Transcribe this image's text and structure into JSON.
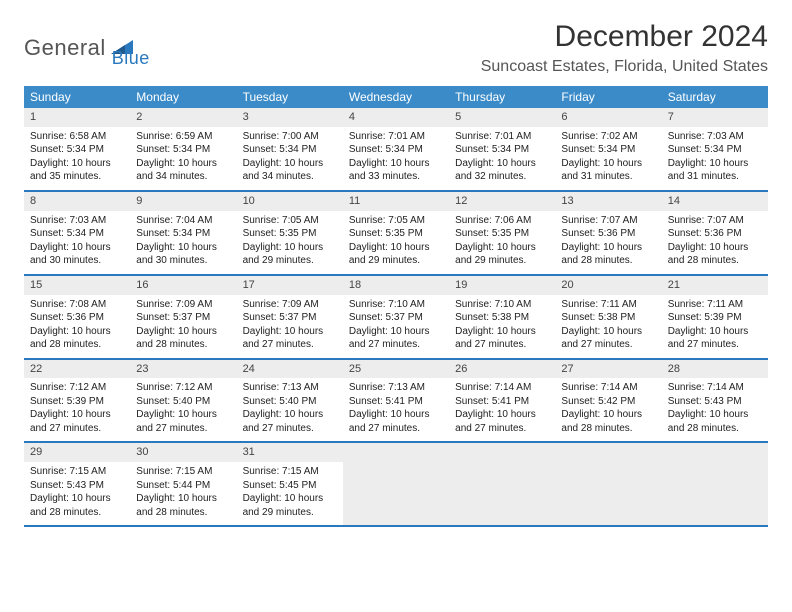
{
  "logo": {
    "part1": "General",
    "part2": "Blue"
  },
  "title": "December 2024",
  "location": "Suncoast Estates, Florida, United States",
  "colors": {
    "header_bg": "#3b8bc9",
    "rule": "#2a78bd",
    "date_bg": "#ededed",
    "logo_accent": "#2a78bd"
  },
  "day_names": [
    "Sunday",
    "Monday",
    "Tuesday",
    "Wednesday",
    "Thursday",
    "Friday",
    "Saturday"
  ],
  "weeks": [
    [
      {
        "n": "1",
        "sr": "Sunrise: 6:58 AM",
        "ss": "Sunset: 5:34 PM",
        "dl": "Daylight: 10 hours and 35 minutes."
      },
      {
        "n": "2",
        "sr": "Sunrise: 6:59 AM",
        "ss": "Sunset: 5:34 PM",
        "dl": "Daylight: 10 hours and 34 minutes."
      },
      {
        "n": "3",
        "sr": "Sunrise: 7:00 AM",
        "ss": "Sunset: 5:34 PM",
        "dl": "Daylight: 10 hours and 34 minutes."
      },
      {
        "n": "4",
        "sr": "Sunrise: 7:01 AM",
        "ss": "Sunset: 5:34 PM",
        "dl": "Daylight: 10 hours and 33 minutes."
      },
      {
        "n": "5",
        "sr": "Sunrise: 7:01 AM",
        "ss": "Sunset: 5:34 PM",
        "dl": "Daylight: 10 hours and 32 minutes."
      },
      {
        "n": "6",
        "sr": "Sunrise: 7:02 AM",
        "ss": "Sunset: 5:34 PM",
        "dl": "Daylight: 10 hours and 31 minutes."
      },
      {
        "n": "7",
        "sr": "Sunrise: 7:03 AM",
        "ss": "Sunset: 5:34 PM",
        "dl": "Daylight: 10 hours and 31 minutes."
      }
    ],
    [
      {
        "n": "8",
        "sr": "Sunrise: 7:03 AM",
        "ss": "Sunset: 5:34 PM",
        "dl": "Daylight: 10 hours and 30 minutes."
      },
      {
        "n": "9",
        "sr": "Sunrise: 7:04 AM",
        "ss": "Sunset: 5:34 PM",
        "dl": "Daylight: 10 hours and 30 minutes."
      },
      {
        "n": "10",
        "sr": "Sunrise: 7:05 AM",
        "ss": "Sunset: 5:35 PM",
        "dl": "Daylight: 10 hours and 29 minutes."
      },
      {
        "n": "11",
        "sr": "Sunrise: 7:05 AM",
        "ss": "Sunset: 5:35 PM",
        "dl": "Daylight: 10 hours and 29 minutes."
      },
      {
        "n": "12",
        "sr": "Sunrise: 7:06 AM",
        "ss": "Sunset: 5:35 PM",
        "dl": "Daylight: 10 hours and 29 minutes."
      },
      {
        "n": "13",
        "sr": "Sunrise: 7:07 AM",
        "ss": "Sunset: 5:36 PM",
        "dl": "Daylight: 10 hours and 28 minutes."
      },
      {
        "n": "14",
        "sr": "Sunrise: 7:07 AM",
        "ss": "Sunset: 5:36 PM",
        "dl": "Daylight: 10 hours and 28 minutes."
      }
    ],
    [
      {
        "n": "15",
        "sr": "Sunrise: 7:08 AM",
        "ss": "Sunset: 5:36 PM",
        "dl": "Daylight: 10 hours and 28 minutes."
      },
      {
        "n": "16",
        "sr": "Sunrise: 7:09 AM",
        "ss": "Sunset: 5:37 PM",
        "dl": "Daylight: 10 hours and 28 minutes."
      },
      {
        "n": "17",
        "sr": "Sunrise: 7:09 AM",
        "ss": "Sunset: 5:37 PM",
        "dl": "Daylight: 10 hours and 27 minutes."
      },
      {
        "n": "18",
        "sr": "Sunrise: 7:10 AM",
        "ss": "Sunset: 5:37 PM",
        "dl": "Daylight: 10 hours and 27 minutes."
      },
      {
        "n": "19",
        "sr": "Sunrise: 7:10 AM",
        "ss": "Sunset: 5:38 PM",
        "dl": "Daylight: 10 hours and 27 minutes."
      },
      {
        "n": "20",
        "sr": "Sunrise: 7:11 AM",
        "ss": "Sunset: 5:38 PM",
        "dl": "Daylight: 10 hours and 27 minutes."
      },
      {
        "n": "21",
        "sr": "Sunrise: 7:11 AM",
        "ss": "Sunset: 5:39 PM",
        "dl": "Daylight: 10 hours and 27 minutes."
      }
    ],
    [
      {
        "n": "22",
        "sr": "Sunrise: 7:12 AM",
        "ss": "Sunset: 5:39 PM",
        "dl": "Daylight: 10 hours and 27 minutes."
      },
      {
        "n": "23",
        "sr": "Sunrise: 7:12 AM",
        "ss": "Sunset: 5:40 PM",
        "dl": "Daylight: 10 hours and 27 minutes."
      },
      {
        "n": "24",
        "sr": "Sunrise: 7:13 AM",
        "ss": "Sunset: 5:40 PM",
        "dl": "Daylight: 10 hours and 27 minutes."
      },
      {
        "n": "25",
        "sr": "Sunrise: 7:13 AM",
        "ss": "Sunset: 5:41 PM",
        "dl": "Daylight: 10 hours and 27 minutes."
      },
      {
        "n": "26",
        "sr": "Sunrise: 7:14 AM",
        "ss": "Sunset: 5:41 PM",
        "dl": "Daylight: 10 hours and 27 minutes."
      },
      {
        "n": "27",
        "sr": "Sunrise: 7:14 AM",
        "ss": "Sunset: 5:42 PM",
        "dl": "Daylight: 10 hours and 28 minutes."
      },
      {
        "n": "28",
        "sr": "Sunrise: 7:14 AM",
        "ss": "Sunset: 5:43 PM",
        "dl": "Daylight: 10 hours and 28 minutes."
      }
    ],
    [
      {
        "n": "29",
        "sr": "Sunrise: 7:15 AM",
        "ss": "Sunset: 5:43 PM",
        "dl": "Daylight: 10 hours and 28 minutes."
      },
      {
        "n": "30",
        "sr": "Sunrise: 7:15 AM",
        "ss": "Sunset: 5:44 PM",
        "dl": "Daylight: 10 hours and 28 minutes."
      },
      {
        "n": "31",
        "sr": "Sunrise: 7:15 AM",
        "ss": "Sunset: 5:45 PM",
        "dl": "Daylight: 10 hours and 29 minutes."
      },
      null,
      null,
      null,
      null
    ]
  ]
}
